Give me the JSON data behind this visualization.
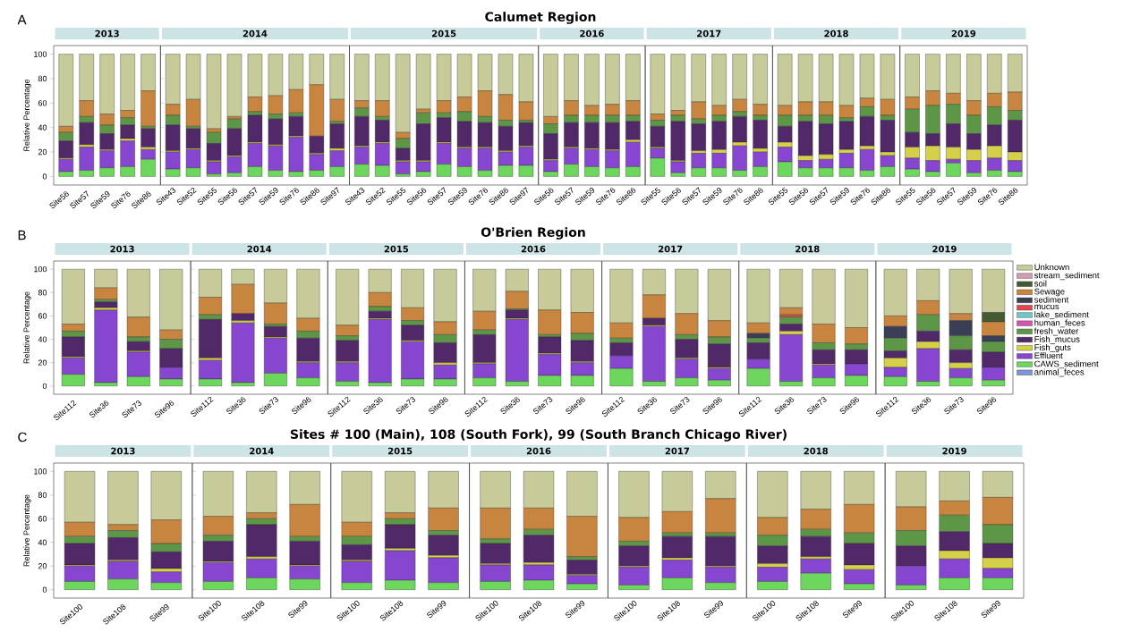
{
  "chart_data": [
    {
      "type": "bar",
      "stacked": true,
      "title": "2013",
      "ylabel": "Relative Percentage",
      "annotations": [
        "A",
        "Calumet Region"
      ],
      "categories": [
        "Site56",
        "Site57",
        "Site59",
        "Site76",
        "Site86"
      ],
      "ylim": [
        -7,
        107
      ],
      "yticks": [
        0,
        20,
        40,
        60,
        80,
        100
      ],
      "series": [
        {
          "color": "#6dd65c",
          "values": [
            4,
            5,
            7,
            8,
            14
          ]
        },
        {
          "color": "#8646d0",
          "values": [
            10,
            19,
            14,
            21,
            8
          ]
        },
        {
          "color": "#d4d04a",
          "values": [
            1,
            2,
            1,
            2,
            2
          ]
        },
        {
          "color": "#512868",
          "values": [
            14,
            18,
            13,
            11,
            15
          ]
        },
        {
          "color": "#5e9648",
          "values": [
            7,
            5,
            7,
            6,
            2
          ]
        },
        {
          "color": "#c8853f",
          "values": [
            5,
            13,
            9,
            6,
            29
          ]
        },
        {
          "color": "#c7cb9a",
          "values": [
            59,
            38,
            49,
            46,
            30
          ]
        }
      ]
    },
    {
      "type": "bar",
      "stacked": true,
      "title": "2014",
      "tick_labels": "x",
      "categories": [
        "Site43",
        "Site52",
        "Site55",
        "Site56",
        "Site57",
        "Site59",
        "Site76",
        "Site86",
        "Site97"
      ],
      "ylim": [
        -7,
        107
      ],
      "yticks": [
        0,
        20,
        40,
        60,
        80,
        100
      ],
      "series": [
        {
          "color": "#6dd65c",
          "values": [
            6,
            7,
            2,
            3,
            8,
            5,
            4,
            5,
            8
          ]
        },
        {
          "color": "#8646d0",
          "values": [
            14,
            15,
            10,
            13,
            19,
            20,
            28,
            13,
            13
          ]
        },
        {
          "color": "#d4d04a",
          "values": [
            1,
            1,
            1,
            1,
            1,
            1,
            1,
            1,
            2
          ]
        },
        {
          "color": "#512868",
          "values": [
            21,
            16,
            14,
            22,
            22,
            21,
            16,
            14,
            20
          ]
        },
        {
          "color": "#5e9648",
          "values": [
            8,
            2,
            9,
            8,
            3,
            4,
            3,
            0,
            2
          ]
        },
        {
          "color": "#c8853f",
          "values": [
            9,
            22,
            3,
            2,
            12,
            15,
            19,
            42,
            18
          ]
        },
        {
          "color": "#c7cb9a",
          "values": [
            41,
            37,
            61,
            51,
            35,
            34,
            29,
            25,
            37
          ]
        }
      ]
    },
    {
      "type": "bar",
      "stacked": true,
      "title": "2015",
      "tick_labels": "x",
      "categories": [
        "Site43",
        "Site52",
        "Site55",
        "Site56",
        "Site57",
        "Site59",
        "Site76",
        "Site86",
        "Site97"
      ],
      "ylim": [
        -7,
        107
      ],
      "yticks": [
        0,
        20,
        40,
        60,
        80,
        100
      ],
      "series": [
        {
          "color": "#6dd65c",
          "values": [
            10,
            9,
            2,
            4,
            10,
            8,
            5,
            9,
            9
          ]
        },
        {
          "color": "#8646d0",
          "values": [
            14,
            18,
            10,
            8,
            17,
            15,
            18,
            11,
            15
          ]
        },
        {
          "color": "#d4d04a",
          "values": [
            1,
            1,
            1,
            1,
            1,
            1,
            1,
            1,
            1
          ]
        },
        {
          "color": "#512868",
          "values": [
            24,
            18,
            10,
            30,
            20,
            21,
            20,
            20,
            19
          ]
        },
        {
          "color": "#5e9648",
          "values": [
            7,
            3,
            8,
            9,
            4,
            8,
            5,
            5,
            2
          ]
        },
        {
          "color": "#c8853f",
          "values": [
            6,
            13,
            5,
            3,
            10,
            12,
            21,
            21,
            15
          ]
        },
        {
          "color": "#c7cb9a",
          "values": [
            38,
            38,
            64,
            45,
            38,
            35,
            30,
            33,
            39
          ]
        }
      ]
    },
    {
      "type": "bar",
      "stacked": true,
      "title": "2016",
      "tick_labels": "x",
      "categories": [
        "Site56",
        "Site57",
        "Site59",
        "Site76",
        "Site86"
      ],
      "ylim": [
        -7,
        107
      ],
      "yticks": [
        0,
        20,
        40,
        60,
        80,
        100
      ],
      "series": [
        {
          "color": "#6dd65c",
          "values": [
            4,
            10,
            8,
            7,
            8
          ]
        },
        {
          "color": "#8646d0",
          "values": [
            9,
            13,
            14,
            14,
            20
          ]
        },
        {
          "color": "#d4d04a",
          "values": [
            1,
            1,
            1,
            1,
            2
          ]
        },
        {
          "color": "#512868",
          "values": [
            21,
            20,
            21,
            22,
            15
          ]
        },
        {
          "color": "#5e9648",
          "values": [
            8,
            6,
            6,
            6,
            5
          ]
        },
        {
          "color": "#c8853f",
          "values": [
            6,
            12,
            8,
            9,
            12
          ]
        },
        {
          "color": "#c7cb9a",
          "values": [
            51,
            38,
            42,
            41,
            38
          ]
        }
      ]
    },
    {
      "type": "bar",
      "stacked": true,
      "title": "2017",
      "tick_labels": "x",
      "categories": [
        "Site55",
        "Site56",
        "Site57",
        "Site59",
        "Site76",
        "Site86"
      ],
      "ylim": [
        -7,
        107
      ],
      "yticks": [
        0,
        20,
        40,
        60,
        80,
        100
      ],
      "series": [
        {
          "color": "#6dd65c",
          "values": [
            15,
            3,
            7,
            7,
            5,
            8
          ]
        },
        {
          "color": "#8646d0",
          "values": [
            8,
            9,
            12,
            12,
            20,
            12
          ]
        },
        {
          "color": "#d4d04a",
          "values": [
            1,
            1,
            2,
            3,
            3,
            3
          ]
        },
        {
          "color": "#512868",
          "values": [
            17,
            32,
            22,
            23,
            21,
            23
          ]
        },
        {
          "color": "#5e9648",
          "values": [
            5,
            5,
            4,
            5,
            4,
            4
          ]
        },
        {
          "color": "#c8853f",
          "values": [
            5,
            4,
            14,
            8,
            10,
            9
          ]
        },
        {
          "color": "#c7cb9a",
          "values": [
            49,
            46,
            39,
            42,
            37,
            41
          ]
        }
      ]
    },
    {
      "type": "bar",
      "stacked": true,
      "title": "2018",
      "tick_labels": "x",
      "categories": [
        "Site55",
        "Site56",
        "Site57",
        "Site59",
        "Site76",
        "Site86"
      ],
      "ylim": [
        -7,
        107
      ],
      "yticks": [
        0,
        20,
        40,
        60,
        80,
        100
      ],
      "series": [
        {
          "color": "#6dd65c",
          "values": [
            12,
            7,
            7,
            7,
            5,
            8
          ]
        },
        {
          "color": "#8646d0",
          "values": [
            12,
            6,
            7,
            12,
            17,
            9
          ]
        },
        {
          "color": "#d4d04a",
          "values": [
            4,
            4,
            4,
            3,
            3,
            3
          ]
        },
        {
          "color": "#512868",
          "values": [
            13,
            28,
            25,
            23,
            24,
            26
          ]
        },
        {
          "color": "#5e9648",
          "values": [
            9,
            5,
            7,
            3,
            8,
            4
          ]
        },
        {
          "color": "#c8853f",
          "values": [
            8,
            11,
            11,
            10,
            7,
            13
          ]
        },
        {
          "color": "#c7cb9a",
          "values": [
            42,
            39,
            39,
            42,
            36,
            37
          ]
        }
      ]
    },
    {
      "type": "bar",
      "stacked": true,
      "title": "2019",
      "tick_labels": "x",
      "categories": [
        "Site55",
        "Site56",
        "Site57",
        "Site59",
        "Site76",
        "Site86"
      ],
      "ylim": [
        -7,
        107
      ],
      "yticks": [
        0,
        20,
        40,
        60,
        80,
        100
      ],
      "series": [
        {
          "color": "#6dd65c",
          "values": [
            6,
            4,
            11,
            3,
            5,
            4
          ]
        },
        {
          "color": "#8646d0",
          "values": [
            9,
            9,
            3,
            10,
            10,
            9
          ]
        },
        {
          "color": "#d4d04a",
          "values": [
            9,
            12,
            10,
            9,
            10,
            7
          ]
        },
        {
          "color": "#512868",
          "values": [
            12,
            10,
            19,
            13,
            17,
            26
          ]
        },
        {
          "color": "#5e9648",
          "values": [
            19,
            23,
            16,
            15,
            15,
            8
          ]
        },
        {
          "color": "#c8853f",
          "values": [
            10,
            12,
            9,
            12,
            11,
            15
          ]
        },
        {
          "color": "#c7cb9a",
          "values": [
            35,
            30,
            32,
            38,
            32,
            31
          ]
        }
      ]
    },
    {
      "type": "bar",
      "stacked": true,
      "title": "2013",
      "ylabel": "Relative Percentage",
      "annotations": [
        "B",
        "O'Brien Region"
      ],
      "categories": [
        "Site112",
        "Site36",
        "Site73",
        "Site96"
      ],
      "ylim": [
        -7,
        107
      ],
      "yticks": [
        0,
        20,
        40,
        60,
        80,
        100
      ],
      "series": [
        {
          "color": "#6dd65c",
          "values": [
            10,
            3,
            8,
            6
          ]
        },
        {
          "color": "#8646d0",
          "values": [
            14,
            62,
            21,
            10
          ]
        },
        {
          "color": "#d4d04a",
          "values": [
            1,
            2,
            1,
            0
          ]
        },
        {
          "color": "#512868",
          "values": [
            17,
            5,
            8,
            16
          ]
        },
        {
          "color": "#5e9648",
          "values": [
            5,
            2,
            4,
            8
          ]
        },
        {
          "color": "#c8853f",
          "values": [
            6,
            10,
            17,
            8
          ]
        },
        {
          "color": "#c7cb9a",
          "values": [
            47,
            16,
            41,
            52
          ]
        }
      ]
    },
    {
      "type": "bar",
      "stacked": true,
      "title": "2014",
      "tick_labels": "x",
      "categories": [
        "Site112",
        "Site36",
        "Site73",
        "Site96"
      ],
      "ylim": [
        -7,
        107
      ],
      "yticks": [
        0,
        20,
        40,
        60,
        80,
        100
      ],
      "series": [
        {
          "color": "#6dd65c",
          "values": [
            6,
            3,
            11,
            7
          ]
        },
        {
          "color": "#8646d0",
          "values": [
            16,
            51,
            30,
            13
          ]
        },
        {
          "color": "#d4d04a",
          "values": [
            2,
            2,
            1,
            1
          ]
        },
        {
          "color": "#512868",
          "values": [
            33,
            6,
            9,
            20
          ]
        },
        {
          "color": "#5e9648",
          "values": [
            4,
            0,
            2,
            6
          ]
        },
        {
          "color": "#c8853f",
          "values": [
            15,
            25,
            18,
            11
          ]
        },
        {
          "color": "#c7cb9a",
          "values": [
            24,
            13,
            29,
            42
          ]
        }
      ]
    },
    {
      "type": "bar",
      "stacked": true,
      "title": "2015",
      "tick_labels": "x",
      "categories": [
        "Site112",
        "Site36",
        "Site73",
        "Site96"
      ],
      "ylim": [
        -7,
        107
      ],
      "yticks": [
        0,
        20,
        40,
        60,
        80,
        100
      ],
      "series": [
        {
          "color": "#6dd65c",
          "values": [
            4,
            3,
            6,
            6
          ]
        },
        {
          "color": "#8646d0",
          "values": [
            16,
            54,
            32,
            12
          ]
        },
        {
          "color": "#d4d04a",
          "values": [
            1,
            1,
            1,
            2
          ]
        },
        {
          "color": "#512868",
          "values": [
            18,
            6,
            13,
            17
          ]
        },
        {
          "color": "#5e9648",
          "values": [
            4,
            4,
            4,
            7
          ]
        },
        {
          "color": "#c8853f",
          "values": [
            9,
            12,
            11,
            11
          ]
        },
        {
          "color": "#c7cb9a",
          "values": [
            48,
            20,
            33,
            45
          ]
        }
      ]
    },
    {
      "type": "bar",
      "stacked": true,
      "title": "2016",
      "tick_labels": "x",
      "categories": [
        "Site112",
        "Site36",
        "Site73",
        "Site96"
      ],
      "ylim": [
        -7,
        107
      ],
      "yticks": [
        0,
        20,
        40,
        60,
        80,
        100
      ],
      "series": [
        {
          "color": "#6dd65c",
          "values": [
            7,
            4,
            9,
            9
          ]
        },
        {
          "color": "#8646d0",
          "values": [
            12,
            53,
            18,
            11
          ]
        },
        {
          "color": "#d4d04a",
          "values": [
            1,
            1,
            1,
            1
          ]
        },
        {
          "color": "#512868",
          "values": [
            24,
            7,
            14,
            18
          ]
        },
        {
          "color": "#5e9648",
          "values": [
            4,
            1,
            2,
            6
          ]
        },
        {
          "color": "#c8853f",
          "values": [
            16,
            15,
            21,
            18
          ]
        },
        {
          "color": "#c7cb9a",
          "values": [
            36,
            19,
            35,
            37
          ]
        }
      ]
    },
    {
      "type": "bar",
      "stacked": true,
      "title": "2017",
      "tick_labels": "x",
      "categories": [
        "Site112",
        "Site36",
        "Site73",
        "Site96"
      ],
      "ylim": [
        -7,
        107
      ],
      "yticks": [
        0,
        20,
        40,
        60,
        80,
        100
      ],
      "series": [
        {
          "color": "#6dd65c",
          "values": [
            15,
            4,
            7,
            5
          ]
        },
        {
          "color": "#8646d0",
          "values": [
            11,
            47,
            16,
            10
          ]
        },
        {
          "color": "#d4d04a",
          "values": [
            0,
            1,
            1,
            1
          ]
        },
        {
          "color": "#512868",
          "values": [
            11,
            6,
            16,
            20
          ]
        },
        {
          "color": "#5e9648",
          "values": [
            4,
            0,
            4,
            6
          ]
        },
        {
          "color": "#c8853f",
          "values": [
            13,
            20,
            18,
            14
          ]
        },
        {
          "color": "#c7cb9a",
          "values": [
            46,
            22,
            38,
            44
          ]
        }
      ]
    },
    {
      "type": "bar",
      "stacked": true,
      "title": "2018",
      "tick_labels": "x",
      "categories": [
        "Site112",
        "Site36",
        "Site73",
        "Site96"
      ],
      "ylim": [
        -7,
        107
      ],
      "yticks": [
        0,
        20,
        40,
        60,
        80,
        100
      ],
      "series": [
        {
          "color": "#6dd65c",
          "values": [
            15,
            4,
            7,
            9
          ]
        },
        {
          "color": "#8646d0",
          "values": [
            8,
            40,
            11,
            10
          ]
        },
        {
          "color": "#d4d04a",
          "values": [
            0,
            3,
            1,
            0
          ]
        },
        {
          "color": "#512868",
          "values": [
            14,
            6,
            12,
            12
          ]
        },
        {
          "color": "#5e9648",
          "values": [
            4,
            6,
            6,
            5
          ]
        },
        {
          "color": "#d94a48",
          "values": [
            0,
            2,
            0,
            0
          ]
        },
        {
          "color": "#3b3f55",
          "values": [
            4,
            0,
            0,
            0
          ]
        },
        {
          "color": "#c8853f",
          "values": [
            9,
            6,
            16,
            14
          ]
        },
        {
          "color": "#c7cb9a",
          "values": [
            46,
            33,
            47,
            50
          ]
        }
      ]
    },
    {
      "type": "bar",
      "stacked": true,
      "title": "2019",
      "tick_labels": "x",
      "legend": "right",
      "categories": [
        "Site112",
        "Site36",
        "Site73",
        "Site96"
      ],
      "ylim": [
        -7,
        107
      ],
      "yticks": [
        0,
        20,
        40,
        60,
        80,
        100
      ],
      "series": [
        {
          "name": "animal_feces",
          "color": "#7f96d6",
          "values": [
            null,
            null,
            null,
            null
          ]
        },
        {
          "name": "CAWS_sediment",
          "color": "#6dd65c",
          "values": [
            8,
            4,
            7,
            5
          ]
        },
        {
          "name": "Effluent",
          "color": "#8646d0",
          "values": [
            8,
            28,
            8,
            11
          ]
        },
        {
          "name": "Fish_guts",
          "color": "#d4d04a",
          "values": [
            8,
            6,
            5,
            0
          ]
        },
        {
          "name": "Fish_mucus",
          "color": "#512868",
          "values": [
            6,
            9,
            11,
            13
          ]
        },
        {
          "name": "fresh_water",
          "color": "#5e9648",
          "values": [
            11,
            14,
            12,
            9
          ]
        },
        {
          "name": "human_feces",
          "color": "#d455b0",
          "values": [
            null,
            null,
            null,
            null
          ]
        },
        {
          "name": "lake_sediment",
          "color": "#6ec8c8",
          "values": [
            null,
            null,
            null,
            null
          ]
        },
        {
          "name": "mucus",
          "color": "#d94a48",
          "values": [
            null,
            null,
            null,
            null
          ]
        },
        {
          "name": "sediment",
          "color": "#3b3f55",
          "values": [
            10,
            0,
            13,
            5
          ]
        },
        {
          "name": "Sewage",
          "color": "#c8853f",
          "values": [
            9,
            12,
            6,
            12
          ]
        },
        {
          "name": "soil",
          "color": "#445a33",
          "values": [
            0,
            0,
            0,
            8
          ]
        },
        {
          "name": "stream_sediment",
          "color": "#d49cb0",
          "values": [
            null,
            null,
            null,
            null
          ]
        },
        {
          "name": "Unknown",
          "color": "#c7cb9a",
          "values": [
            40,
            27,
            38,
            37
          ]
        }
      ]
    },
    {
      "type": "bar",
      "stacked": true,
      "title": "2013",
      "ylabel": "Relative Percentage",
      "annotations": [
        "C",
        "Sites # 100 (Main), 108 (South Fork), 99 (South Branch Chicago River)"
      ],
      "categories": [
        "Site100",
        "Site108",
        "Site99"
      ],
      "ylim": [
        -7,
        107
      ],
      "yticks": [
        0,
        20,
        40,
        60,
        80,
        100
      ],
      "series": [
        {
          "color": "#6dd65c",
          "values": [
            7,
            9,
            6
          ]
        },
        {
          "color": "#8646d0",
          "values": [
            13,
            15,
            9
          ]
        },
        {
          "color": "#d4d04a",
          "values": [
            1,
            1,
            3
          ]
        },
        {
          "color": "#512868",
          "values": [
            18,
            19,
            14
          ]
        },
        {
          "color": "#5e9648",
          "values": [
            6,
            6,
            7
          ]
        },
        {
          "color": "#c8853f",
          "values": [
            12,
            5,
            20
          ]
        },
        {
          "color": "#c7cb9a",
          "values": [
            43,
            45,
            41
          ]
        }
      ]
    },
    {
      "type": "bar",
      "stacked": true,
      "title": "2014",
      "tick_labels": "x",
      "categories": [
        "Site100",
        "Site108",
        "Site99"
      ],
      "ylim": [
        -7,
        107
      ],
      "yticks": [
        0,
        20,
        40,
        60,
        80,
        100
      ],
      "series": [
        {
          "color": "#6dd65c",
          "values": [
            7,
            10,
            9
          ]
        },
        {
          "color": "#8646d0",
          "values": [
            16,
            16,
            11
          ]
        },
        {
          "color": "#d4d04a",
          "values": [
            1,
            2,
            1
          ]
        },
        {
          "color": "#512868",
          "values": [
            17,
            27,
            20
          ]
        },
        {
          "color": "#5e9648",
          "values": [
            5,
            5,
            4
          ]
        },
        {
          "color": "#c8853f",
          "values": [
            16,
            5,
            27
          ]
        },
        {
          "color": "#c7cb9a",
          "values": [
            38,
            35,
            28
          ]
        }
      ]
    },
    {
      "type": "bar",
      "stacked": true,
      "title": "2015",
      "tick_labels": "x",
      "categories": [
        "Site100",
        "Site108",
        "Site99"
      ],
      "ylim": [
        -7,
        107
      ],
      "yticks": [
        0,
        20,
        40,
        60,
        80,
        100
      ],
      "series": [
        {
          "color": "#6dd65c",
          "values": [
            6,
            8,
            6
          ]
        },
        {
          "color": "#8646d0",
          "values": [
            18,
            25,
            21
          ]
        },
        {
          "color": "#d4d04a",
          "values": [
            1,
            2,
            2
          ]
        },
        {
          "color": "#512868",
          "values": [
            13,
            20,
            17
          ]
        },
        {
          "color": "#5e9648",
          "values": [
            7,
            5,
            4
          ]
        },
        {
          "color": "#c8853f",
          "values": [
            12,
            5,
            19
          ]
        },
        {
          "color": "#c7cb9a",
          "values": [
            43,
            35,
            31
          ]
        }
      ]
    },
    {
      "type": "bar",
      "stacked": true,
      "title": "2016",
      "tick_labels": "x",
      "categories": [
        "Site100",
        "Site108",
        "Site99"
      ],
      "ylim": [
        -7,
        107
      ],
      "yticks": [
        0,
        20,
        40,
        60,
        80,
        100
      ],
      "series": [
        {
          "color": "#6dd65c",
          "values": [
            7,
            8,
            5
          ]
        },
        {
          "color": "#8646d0",
          "values": [
            14,
            13,
            7
          ]
        },
        {
          "color": "#d4d04a",
          "values": [
            1,
            2,
            1
          ]
        },
        {
          "color": "#512868",
          "values": [
            17,
            23,
            12
          ]
        },
        {
          "color": "#5e9648",
          "values": [
            4,
            5,
            3
          ]
        },
        {
          "color": "#c8853f",
          "values": [
            26,
            18,
            34
          ]
        },
        {
          "color": "#c7cb9a",
          "values": [
            31,
            31,
            38
          ]
        }
      ]
    },
    {
      "type": "bar",
      "stacked": true,
      "title": "2017",
      "tick_labels": "x",
      "categories": [
        "Site100",
        "Site108",
        "Site99"
      ],
      "ylim": [
        -7,
        107
      ],
      "yticks": [
        0,
        20,
        40,
        60,
        80,
        100
      ],
      "series": [
        {
          "color": "#6dd65c",
          "values": [
            4,
            10,
            6
          ]
        },
        {
          "color": "#8646d0",
          "values": [
            15,
            15,
            13
          ]
        },
        {
          "color": "#d4d04a",
          "values": [
            1,
            2,
            1
          ]
        },
        {
          "color": "#512868",
          "values": [
            17,
            18,
            25
          ]
        },
        {
          "color": "#5e9648",
          "values": [
            4,
            3,
            3
          ]
        },
        {
          "color": "#c8853f",
          "values": [
            20,
            18,
            29
          ]
        },
        {
          "color": "#c7cb9a",
          "values": [
            39,
            34,
            23
          ]
        }
      ]
    },
    {
      "type": "bar",
      "stacked": true,
      "title": "2018",
      "tick_labels": "x",
      "categories": [
        "Site100",
        "Site108",
        "Site99"
      ],
      "ylim": [
        -7,
        107
      ],
      "yticks": [
        0,
        20,
        40,
        60,
        80,
        100
      ],
      "series": [
        {
          "color": "#6dd65c",
          "values": [
            7,
            14,
            5
          ]
        },
        {
          "color": "#8646d0",
          "values": [
            12,
            12,
            12
          ]
        },
        {
          "color": "#d4d04a",
          "values": [
            3,
            2,
            4
          ]
        },
        {
          "color": "#512868",
          "values": [
            15,
            17,
            18
          ]
        },
        {
          "color": "#5e9648",
          "values": [
            9,
            6,
            9
          ]
        },
        {
          "color": "#c8853f",
          "values": [
            15,
            17,
            24
          ]
        },
        {
          "color": "#c7cb9a",
          "values": [
            39,
            32,
            28
          ]
        }
      ]
    },
    {
      "type": "bar",
      "stacked": true,
      "title": "2019",
      "tick_labels": "x",
      "categories": [
        "Site100",
        "Site108",
        "Site99"
      ],
      "ylim": [
        -7,
        107
      ],
      "yticks": [
        0,
        20,
        40,
        60,
        80,
        100
      ],
      "series": [
        {
          "color": "#6dd65c",
          "values": [
            4,
            10,
            10
          ]
        },
        {
          "color": "#8646d0",
          "values": [
            16,
            16,
            8
          ]
        },
        {
          "color": "#d4d04a",
          "values": [
            0,
            7,
            9
          ]
        },
        {
          "color": "#512868",
          "values": [
            17,
            16,
            12
          ]
        },
        {
          "color": "#5e9648",
          "values": [
            13,
            14,
            16
          ]
        },
        {
          "color": "#c8853f",
          "values": [
            20,
            12,
            23
          ]
        },
        {
          "color": "#c7cb9a",
          "values": [
            30,
            25,
            22
          ]
        }
      ]
    }
  ]
}
